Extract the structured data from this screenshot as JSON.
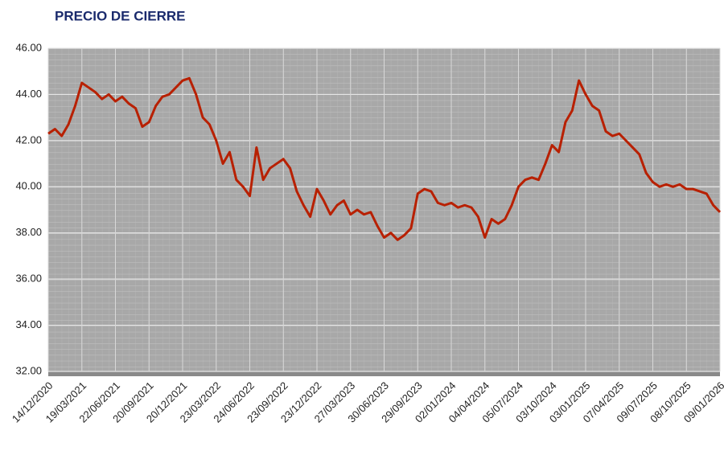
{
  "chart_data": {
    "type": "line",
    "title": "PRECIO DE CIERRE",
    "categories": [
      "14/12/2020",
      null,
      null,
      null,
      null,
      "19/03/2021",
      null,
      null,
      null,
      null,
      "22/06/2021",
      null,
      null,
      null,
      null,
      "20/09/2021",
      null,
      null,
      null,
      null,
      "20/12/2021",
      null,
      null,
      null,
      null,
      "23/03/2022",
      null,
      null,
      null,
      null,
      "24/06/2022",
      null,
      null,
      null,
      null,
      "23/09/2022",
      null,
      null,
      null,
      null,
      "23/12/2022",
      null,
      null,
      null,
      null,
      "27/03/2023",
      null,
      null,
      null,
      null,
      "30/06/2023",
      null,
      null,
      null,
      null,
      "29/09/2023",
      null,
      null,
      null,
      null,
      "02/01/2024",
      null,
      null,
      null,
      null,
      "04/04/2024",
      null,
      null,
      null,
      null,
      "05/07/2024",
      null,
      null,
      null,
      null,
      "03/10/2024",
      null,
      null,
      null,
      null,
      "03/01/2025",
      null,
      null,
      null,
      null,
      "07/04/2025",
      null,
      null,
      null,
      null,
      "09/07/2025",
      null,
      null,
      null,
      null,
      "08/10/2025",
      null,
      null,
      null,
      null,
      "09/01/2026"
    ],
    "series": [
      {
        "name": "Precio de cierre",
        "color": "#b82000",
        "values": [
          42.3,
          42.5,
          42.2,
          42.7,
          43.5,
          44.5,
          44.3,
          44.1,
          43.8,
          44.0,
          43.7,
          43.9,
          43.6,
          43.4,
          42.6,
          42.8,
          43.5,
          43.9,
          44.0,
          44.3,
          44.6,
          44.7,
          44.0,
          43.0,
          42.7,
          42.0,
          41.0,
          41.5,
          40.3,
          40.0,
          39.6,
          41.7,
          40.3,
          40.8,
          41.0,
          41.2,
          40.8,
          39.8,
          39.2,
          38.7,
          39.9,
          39.4,
          38.8,
          39.2,
          39.4,
          38.8,
          39.0,
          38.8,
          38.9,
          38.3,
          37.8,
          38.0,
          37.7,
          37.9,
          38.2,
          39.7,
          39.9,
          39.8,
          39.3,
          39.2,
          39.3,
          39.1,
          39.2,
          39.1,
          38.7,
          37.8,
          38.6,
          38.4,
          38.6,
          39.2,
          40.0,
          40.3,
          40.4,
          40.3,
          41.0,
          41.8,
          41.5,
          42.8,
          43.3,
          44.6,
          44.0,
          43.5,
          43.3,
          42.4,
          42.2,
          42.3,
          42.0,
          41.7,
          41.4,
          40.6,
          40.2,
          40.0,
          40.1,
          40.0,
          40.1,
          39.9,
          39.9,
          39.8,
          39.7,
          39.2,
          38.9
        ]
      }
    ],
    "ylim": [
      32,
      46
    ],
    "yticks": [
      {
        "value": 32,
        "label": "32.00"
      },
      {
        "value": 34,
        "label": "34.00"
      },
      {
        "value": 36,
        "label": "36.00"
      },
      {
        "value": 38,
        "label": "38.00"
      },
      {
        "value": 40,
        "label": "40.00"
      },
      {
        "value": 42,
        "label": "42.00"
      },
      {
        "value": 44,
        "label": "44.00"
      },
      {
        "value": 46,
        "label": "46.00"
      }
    ],
    "grid": true
  }
}
